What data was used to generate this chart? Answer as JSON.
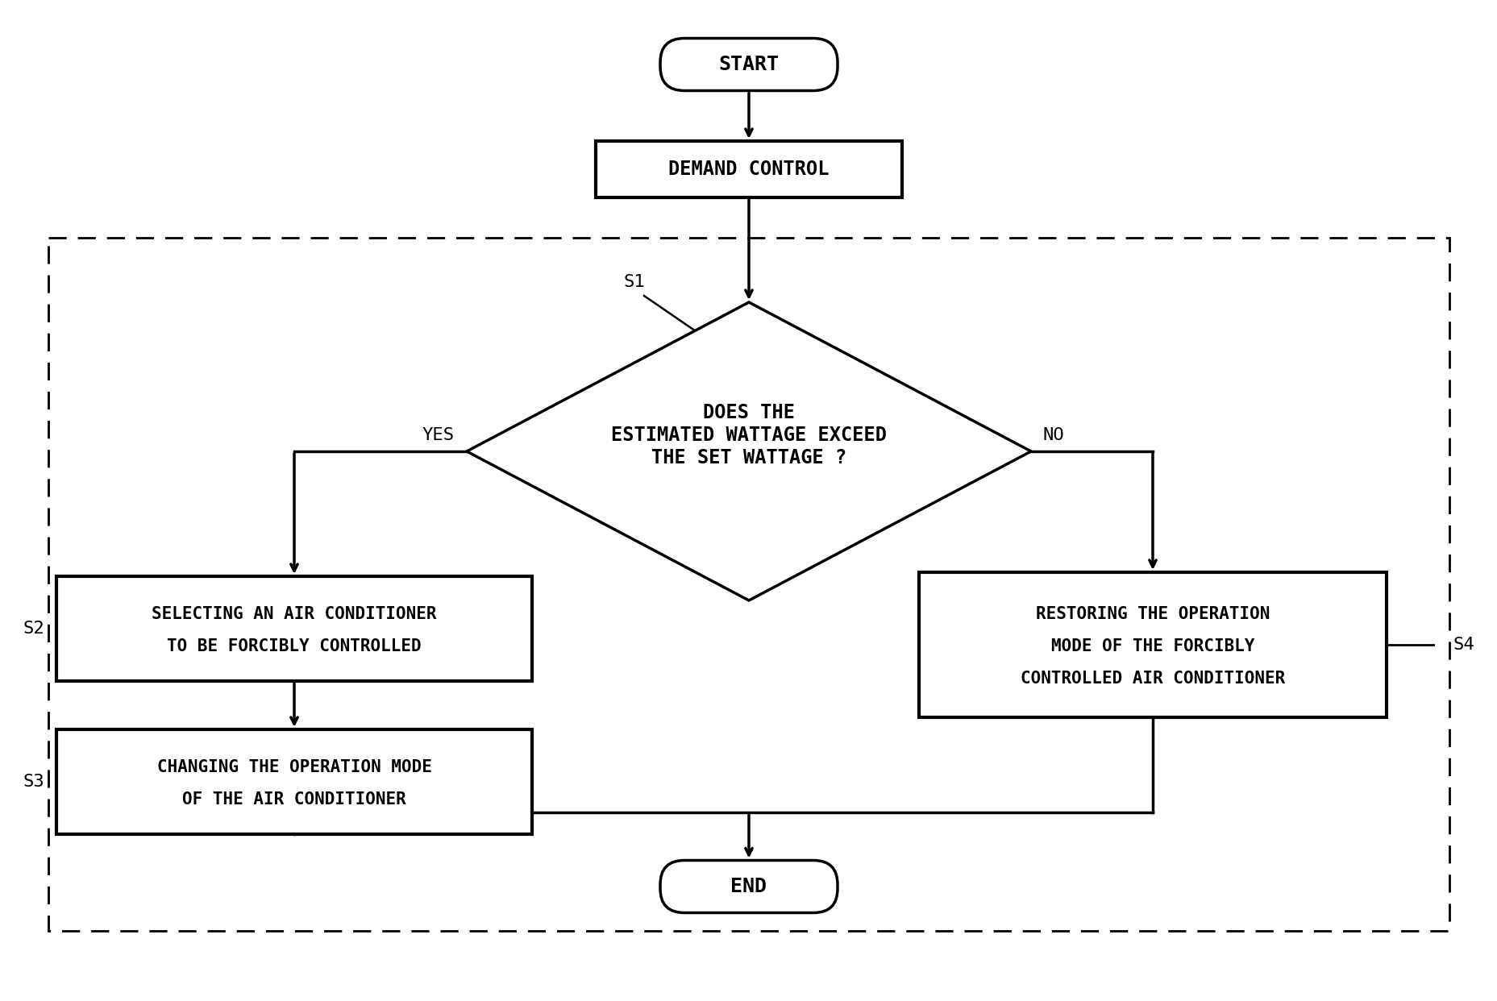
{
  "bg_color": "#ffffff",
  "line_color": "#000000",
  "text_color": "#000000",
  "font_family": "DejaVu Sans Mono",
  "start_label": "START",
  "demand_label": "DEMAND CONTROL",
  "diamond_label": "DOES THE\nESTIMATED WATTAGE EXCEED\nTHE SET WATTAGE ?",
  "s1_label": "S1",
  "s2_label": "S2",
  "s3_label": "S3",
  "s4_label": "S4",
  "yes_label": "YES",
  "no_label": "NO",
  "box_s2_line1": "SELECTING AN AIR CONDITIONER",
  "box_s2_line2": "TO BE FORCIBLY CONTROLLED",
  "box_s3_line1": "CHANGING THE OPERATION MODE",
  "box_s3_line2": "OF THE AIR CONDITIONER",
  "box_s4_line1": "RESTORING THE OPERATION",
  "box_s4_line2": "MODE OF THE FORCIBLY",
  "box_s4_line3": "CONTROLLED AIR CONDITIONER",
  "end_label": "END",
  "fig_width": 18.58,
  "fig_height": 12.42
}
